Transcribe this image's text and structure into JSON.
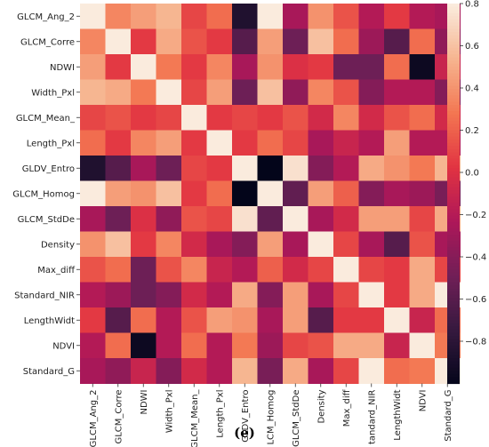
{
  "caption": "(e)",
  "chart_data": {
    "type": "heatmap",
    "row_labels": [
      "GLCM_Ang_2",
      "GLCM_Corre",
      "NDWI",
      "Width_Pxl",
      "GLCM_Mean_",
      "Length_Pxl",
      "GLDV_Entro",
      "GLCM_Homog",
      "GLCM_StdDe",
      "Density",
      "Max_diff",
      "Standard_NIR",
      "LengthWidt",
      "NDVI",
      "Standard_G"
    ],
    "col_labels": [
      "GLCM_Ang_2",
      "GLCM_Corre",
      "NDWI",
      "Width_Pxl",
      "GLCM_Mean_",
      "Length_Pxl",
      "GLDV_Entro",
      "LCM_Homog",
      "GLCM_StdDe",
      "Density",
      "Max_diff",
      "tandard_NIR",
      "LengthWidt",
      "NDVI",
      "Standard_G"
    ],
    "values": [
      [
        1.0,
        0.35,
        0.45,
        0.55,
        0.1,
        0.25,
        -0.85,
        0.95,
        -0.25,
        0.4,
        0.15,
        -0.2,
        0.05,
        -0.2,
        -0.25
      ],
      [
        0.35,
        1.0,
        0.05,
        0.5,
        0.15,
        0.05,
        -0.6,
        0.45,
        -0.5,
        0.6,
        0.25,
        -0.3,
        -0.6,
        0.25,
        -0.35
      ],
      [
        0.45,
        0.05,
        1.0,
        0.3,
        0.05,
        0.35,
        -0.25,
        0.4,
        0.0,
        0.05,
        -0.5,
        -0.5,
        0.25,
        -0.95,
        -0.1
      ],
      [
        0.55,
        0.5,
        0.3,
        1.0,
        0.1,
        0.45,
        -0.5,
        0.6,
        -0.35,
        0.35,
        0.15,
        -0.4,
        -0.2,
        -0.2,
        -0.4
      ],
      [
        0.1,
        0.15,
        0.05,
        0.1,
        1.0,
        0.05,
        0.1,
        0.05,
        0.15,
        -0.05,
        0.35,
        -0.05,
        0.15,
        0.25,
        -0.05
      ],
      [
        0.25,
        0.05,
        0.35,
        0.45,
        0.05,
        1.0,
        0.05,
        0.25,
        0.1,
        -0.25,
        -0.1,
        -0.2,
        0.45,
        -0.2,
        -0.2
      ],
      [
        -0.85,
        -0.6,
        -0.25,
        -0.5,
        0.1,
        0.05,
        1.0,
        -1.0,
        0.75,
        -0.4,
        -0.2,
        0.5,
        0.4,
        0.3,
        0.55
      ],
      [
        0.95,
        0.45,
        0.4,
        0.6,
        0.05,
        0.25,
        -1.0,
        1.0,
        -0.55,
        0.45,
        0.2,
        -0.4,
        -0.25,
        -0.3,
        -0.45
      ],
      [
        -0.25,
        -0.5,
        0.0,
        -0.35,
        0.15,
        0.1,
        0.75,
        -0.55,
        1.0,
        -0.25,
        -0.05,
        0.45,
        0.45,
        0.1,
        0.5
      ],
      [
        0.4,
        0.6,
        0.05,
        0.35,
        -0.05,
        -0.25,
        -0.4,
        0.45,
        -0.25,
        1.0,
        0.1,
        -0.25,
        -0.6,
        0.15,
        -0.25
      ],
      [
        0.15,
        0.25,
        -0.5,
        0.15,
        0.35,
        -0.1,
        -0.2,
        0.2,
        -0.05,
        0.1,
        1.0,
        0.1,
        0.05,
        0.5,
        0.1
      ],
      [
        -0.2,
        -0.3,
        -0.5,
        -0.4,
        -0.05,
        -0.2,
        0.5,
        -0.4,
        0.45,
        -0.25,
        0.1,
        1.0,
        0.05,
        0.5,
        0.95
      ],
      [
        0.05,
        -0.6,
        0.25,
        -0.2,
        0.15,
        0.45,
        0.4,
        -0.25,
        0.45,
        -0.6,
        0.05,
        0.05,
        1.0,
        -0.1,
        0.25
      ],
      [
        -0.2,
        0.25,
        -0.95,
        -0.2,
        0.25,
        -0.2,
        0.3,
        -0.3,
        0.1,
        0.15,
        0.5,
        0.5,
        -0.1,
        1.0,
        0.3
      ],
      [
        -0.25,
        -0.35,
        -0.1,
        -0.4,
        -0.05,
        -0.2,
        0.55,
        -0.45,
        0.5,
        -0.25,
        0.1,
        0.95,
        0.25,
        0.3,
        1.0
      ]
    ],
    "colorbar": {
      "range": [
        -1.0,
        0.8
      ],
      "ticks": [
        0.8,
        0.6,
        0.4,
        0.2,
        0.0,
        -0.2,
        -0.4,
        -0.6,
        -0.8
      ],
      "tick_labels": [
        "0.8",
        "0.6",
        "0.4",
        "0.2",
        "0.0",
        "−0.2",
        "−0.4",
        "−0.6",
        "−0.8"
      ],
      "colormap": "rocket",
      "stops": [
        "#03051a",
        "#35193e",
        "#701f57",
        "#ad1759",
        "#e13342",
        "#f37651",
        "#f6b48f",
        "#faebdd"
      ]
    }
  }
}
